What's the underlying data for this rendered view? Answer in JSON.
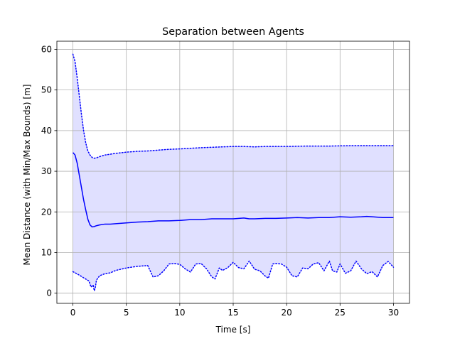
{
  "chart_data": {
    "type": "line",
    "title": "Separation between Agents",
    "xlabel": "Time [s]",
    "ylabel": "Mean Distance (with Min/Max Bounds) [m]",
    "xlim": [
      -1.5,
      31.5
    ],
    "ylim": [
      -2.5,
      62.0
    ],
    "xticks": [
      0,
      5,
      10,
      15,
      20,
      25,
      30
    ],
    "yticks": [
      0,
      10,
      20,
      30,
      40,
      50,
      60
    ],
    "grid": true,
    "legend": "none",
    "colors": {
      "line": "#0000ff",
      "fill": "#e0e0ff",
      "grid": "#b0b0b0"
    },
    "series": [
      {
        "role": "mean",
        "style": "solid",
        "x": [
          0,
          0.2,
          0.4,
          0.6,
          0.8,
          1.0,
          1.2,
          1.4,
          1.6,
          1.8,
          2.0,
          2.2,
          2.5,
          3,
          3.5,
          4,
          5,
          6,
          7,
          8,
          9,
          10,
          11,
          12,
          13,
          14,
          15,
          16,
          16.5,
          17,
          18,
          19,
          20,
          21,
          22,
          23,
          24,
          25,
          26,
          27,
          27.5,
          28,
          29,
          30
        ],
        "y": [
          34.6,
          34.0,
          32.0,
          29.0,
          26.0,
          23.0,
          20.5,
          18.2,
          16.8,
          16.3,
          16.4,
          16.6,
          16.8,
          17.0,
          17.0,
          17.1,
          17.3,
          17.5,
          17.6,
          17.8,
          17.8,
          17.9,
          18.1,
          18.1,
          18.3,
          18.3,
          18.3,
          18.5,
          18.3,
          18.3,
          18.4,
          18.4,
          18.5,
          18.6,
          18.5,
          18.6,
          18.6,
          18.8,
          18.7,
          18.8,
          18.9,
          18.8,
          18.6,
          18.6
        ]
      },
      {
        "role": "max",
        "style": "dotted",
        "x": [
          0,
          0.2,
          0.4,
          0.6,
          0.8,
          1.0,
          1.2,
          1.4,
          1.6,
          1.8,
          2.0,
          2.2,
          2.5,
          3,
          4,
          5,
          6,
          7,
          8,
          9,
          10,
          12,
          14,
          15,
          16,
          17,
          18,
          20,
          22,
          24,
          26,
          28,
          30
        ],
        "y": [
          58.8,
          57.0,
          53.0,
          48.5,
          44.0,
          40.0,
          37.0,
          35.0,
          34.0,
          33.4,
          33.2,
          33.3,
          33.6,
          34.0,
          34.4,
          34.7,
          34.9,
          35.0,
          35.2,
          35.4,
          35.5,
          35.8,
          36.0,
          36.1,
          36.1,
          36.0,
          36.1,
          36.1,
          36.2,
          36.2,
          36.3,
          36.3,
          36.3
        ]
      },
      {
        "role": "min",
        "style": "dotted",
        "x": [
          0,
          0.5,
          1.0,
          1.5,
          1.7,
          1.9,
          2.0,
          2.1,
          2.2,
          2.5,
          3.0,
          3.5,
          4.0,
          5.0,
          6.0,
          7.0,
          7.5,
          8.0,
          8.5,
          9.0,
          9.5,
          10.0,
          10.5,
          11.0,
          11.5,
          12.0,
          12.5,
          13.0,
          13.3,
          13.7,
          14.0,
          14.5,
          15.0,
          15.5,
          16.0,
          16.5,
          17.0,
          17.5,
          18.0,
          18.3,
          18.7,
          19.0,
          19.5,
          20.0,
          20.5,
          21.0,
          21.5,
          22.0,
          22.5,
          23.0,
          23.5,
          24.0,
          24.3,
          24.7,
          25.0,
          25.5,
          26.0,
          26.5,
          27.0,
          27.5,
          28.0,
          28.5,
          29.0,
          29.5,
          30.0
        ],
        "y": [
          5.3,
          4.6,
          3.8,
          3.0,
          1.5,
          2.0,
          0.6,
          1.4,
          3.2,
          4.3,
          4.8,
          5.0,
          5.6,
          6.2,
          6.6,
          6.8,
          4.0,
          4.3,
          5.5,
          7.2,
          7.3,
          7.1,
          6.0,
          5.2,
          7.2,
          7.3,
          6.0,
          4.0,
          3.5,
          6.2,
          5.6,
          6.3,
          7.6,
          6.3,
          6.0,
          7.9,
          5.9,
          5.5,
          4.2,
          3.7,
          7.2,
          7.3,
          7.2,
          6.4,
          4.3,
          4.0,
          6.2,
          6.0,
          7.2,
          7.5,
          5.5,
          7.9,
          5.5,
          5.2,
          7.2,
          4.9,
          5.5,
          7.9,
          6.0,
          4.8,
          5.3,
          4.0,
          6.8,
          7.8,
          6.4
        ]
      }
    ]
  }
}
